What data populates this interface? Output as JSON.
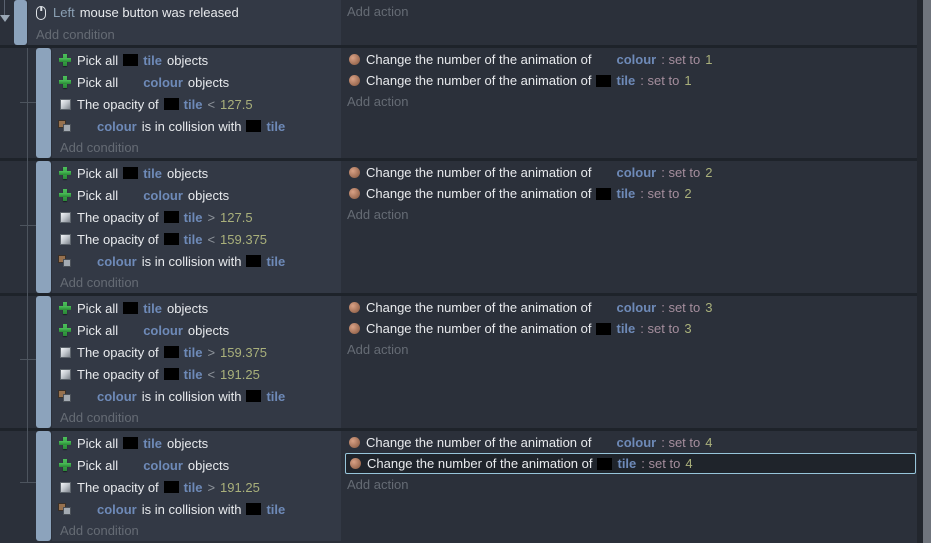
{
  "ui": {
    "add_condition": "Add condition",
    "add_action": "Add action"
  },
  "colors": {
    "object_name": "#6e8ab8",
    "number": "#a9b07b",
    "operator": "#8f959c",
    "set_to_text": "#a58e9d",
    "parameter": "#8ba0b4",
    "selection_border": "#97c5da",
    "event_bar": "#8ca3bc",
    "condition_panel_bg": "#333945",
    "background": "#2b303a"
  },
  "top_event": {
    "icon": "mouse-icon",
    "param": "Left",
    "text": "mouse button was released"
  },
  "blocks": [
    {
      "conditions": [
        {
          "icon": "pick-plus-icon",
          "segments": [
            {
              "t": "text",
              "v": "Pick all"
            },
            {
              "t": "thumb",
              "v": "black"
            },
            {
              "t": "object",
              "v": "tile"
            },
            {
              "t": "text",
              "v": "objects"
            }
          ]
        },
        {
          "icon": "pick-plus-icon",
          "segments": [
            {
              "t": "text",
              "v": "Pick all"
            },
            {
              "t": "thumb",
              "v": "blank"
            },
            {
              "t": "object",
              "v": "colour"
            },
            {
              "t": "text",
              "v": "objects"
            }
          ]
        },
        {
          "icon": "opacity-icon",
          "segments": [
            {
              "t": "text",
              "v": "The opacity of"
            },
            {
              "t": "thumb",
              "v": "black"
            },
            {
              "t": "object",
              "v": "tile"
            },
            {
              "t": "op",
              "v": "<"
            },
            {
              "t": "num",
              "v": "127.5"
            }
          ]
        },
        {
          "icon": "collision-icon",
          "segments": [
            {
              "t": "thumb",
              "v": "blank"
            },
            {
              "t": "object",
              "v": "colour"
            },
            {
              "t": "text",
              "v": "is in collision with"
            },
            {
              "t": "thumb",
              "v": "black"
            },
            {
              "t": "object",
              "v": "tile"
            }
          ]
        }
      ],
      "actions": [
        {
          "icon": "animation-icon",
          "text": "Change the number of the animation of",
          "thumb": "blank",
          "object": "colour",
          "set_label": ": set to",
          "value": "1",
          "selected": false
        },
        {
          "icon": "animation-icon",
          "text": "Change the number of the animation of",
          "thumb": "black",
          "object": "tile",
          "set_label": ": set to",
          "value": "1",
          "selected": false
        }
      ]
    },
    {
      "conditions": [
        {
          "icon": "pick-plus-icon",
          "segments": [
            {
              "t": "text",
              "v": "Pick all"
            },
            {
              "t": "thumb",
              "v": "black"
            },
            {
              "t": "object",
              "v": "tile"
            },
            {
              "t": "text",
              "v": "objects"
            }
          ]
        },
        {
          "icon": "pick-plus-icon",
          "segments": [
            {
              "t": "text",
              "v": "Pick all"
            },
            {
              "t": "thumb",
              "v": "blank"
            },
            {
              "t": "object",
              "v": "colour"
            },
            {
              "t": "text",
              "v": "objects"
            }
          ]
        },
        {
          "icon": "opacity-icon",
          "segments": [
            {
              "t": "text",
              "v": "The opacity of"
            },
            {
              "t": "thumb",
              "v": "black"
            },
            {
              "t": "object",
              "v": "tile"
            },
            {
              "t": "op",
              "v": ">"
            },
            {
              "t": "num",
              "v": "127.5"
            }
          ]
        },
        {
          "icon": "opacity-icon",
          "segments": [
            {
              "t": "text",
              "v": "The opacity of"
            },
            {
              "t": "thumb",
              "v": "black"
            },
            {
              "t": "object",
              "v": "tile"
            },
            {
              "t": "op",
              "v": "<"
            },
            {
              "t": "num",
              "v": "159.375"
            }
          ]
        },
        {
          "icon": "collision-icon",
          "segments": [
            {
              "t": "thumb",
              "v": "blank"
            },
            {
              "t": "object",
              "v": "colour"
            },
            {
              "t": "text",
              "v": "is in collision with"
            },
            {
              "t": "thumb",
              "v": "black"
            },
            {
              "t": "object",
              "v": "tile"
            }
          ]
        }
      ],
      "actions": [
        {
          "icon": "animation-icon",
          "text": "Change the number of the animation of",
          "thumb": "blank",
          "object": "colour",
          "set_label": ": set to",
          "value": "2",
          "selected": false
        },
        {
          "icon": "animation-icon",
          "text": "Change the number of the animation of",
          "thumb": "black",
          "object": "tile",
          "set_label": ": set to",
          "value": "2",
          "selected": false
        }
      ]
    },
    {
      "conditions": [
        {
          "icon": "pick-plus-icon",
          "segments": [
            {
              "t": "text",
              "v": "Pick all"
            },
            {
              "t": "thumb",
              "v": "black"
            },
            {
              "t": "object",
              "v": "tile"
            },
            {
              "t": "text",
              "v": "objects"
            }
          ]
        },
        {
          "icon": "pick-plus-icon",
          "segments": [
            {
              "t": "text",
              "v": "Pick all"
            },
            {
              "t": "thumb",
              "v": "blank"
            },
            {
              "t": "object",
              "v": "colour"
            },
            {
              "t": "text",
              "v": "objects"
            }
          ]
        },
        {
          "icon": "opacity-icon",
          "segments": [
            {
              "t": "text",
              "v": "The opacity of"
            },
            {
              "t": "thumb",
              "v": "black"
            },
            {
              "t": "object",
              "v": "tile"
            },
            {
              "t": "op",
              "v": ">"
            },
            {
              "t": "num",
              "v": "159.375"
            }
          ]
        },
        {
          "icon": "opacity-icon",
          "segments": [
            {
              "t": "text",
              "v": "The opacity of"
            },
            {
              "t": "thumb",
              "v": "black"
            },
            {
              "t": "object",
              "v": "tile"
            },
            {
              "t": "op",
              "v": "<"
            },
            {
              "t": "num",
              "v": "191.25"
            }
          ]
        },
        {
          "icon": "collision-icon",
          "segments": [
            {
              "t": "thumb",
              "v": "blank"
            },
            {
              "t": "object",
              "v": "colour"
            },
            {
              "t": "text",
              "v": "is in collision with"
            },
            {
              "t": "thumb",
              "v": "black"
            },
            {
              "t": "object",
              "v": "tile"
            }
          ]
        }
      ],
      "actions": [
        {
          "icon": "animation-icon",
          "text": "Change the number of the animation of",
          "thumb": "blank",
          "object": "colour",
          "set_label": ": set to",
          "value": "3",
          "selected": false
        },
        {
          "icon": "animation-icon",
          "text": "Change the number of the animation of",
          "thumb": "black",
          "object": "tile",
          "set_label": ": set to",
          "value": "3",
          "selected": false
        }
      ]
    },
    {
      "conditions": [
        {
          "icon": "pick-plus-icon",
          "segments": [
            {
              "t": "text",
              "v": "Pick all"
            },
            {
              "t": "thumb",
              "v": "black"
            },
            {
              "t": "object",
              "v": "tile"
            },
            {
              "t": "text",
              "v": "objects"
            }
          ]
        },
        {
          "icon": "pick-plus-icon",
          "segments": [
            {
              "t": "text",
              "v": "Pick all"
            },
            {
              "t": "thumb",
              "v": "blank"
            },
            {
              "t": "object",
              "v": "colour"
            },
            {
              "t": "text",
              "v": "objects"
            }
          ]
        },
        {
          "icon": "opacity-icon",
          "segments": [
            {
              "t": "text",
              "v": "The opacity of"
            },
            {
              "t": "thumb",
              "v": "black"
            },
            {
              "t": "object",
              "v": "tile"
            },
            {
              "t": "op",
              "v": ">"
            },
            {
              "t": "num",
              "v": "191.25"
            }
          ]
        },
        {
          "icon": "collision-icon",
          "segments": [
            {
              "t": "thumb",
              "v": "blank"
            },
            {
              "t": "object",
              "v": "colour"
            },
            {
              "t": "text",
              "v": "is in collision with"
            },
            {
              "t": "thumb",
              "v": "black"
            },
            {
              "t": "object",
              "v": "tile"
            }
          ]
        }
      ],
      "actions": [
        {
          "icon": "animation-icon",
          "text": "Change the number of the animation of",
          "thumb": "blank",
          "object": "colour",
          "set_label": ": set to",
          "value": "4",
          "selected": false
        },
        {
          "icon": "animation-icon",
          "text": "Change the number of the animation of",
          "thumb": "black",
          "object": "tile",
          "set_label": ": set to",
          "value": "4",
          "selected": true
        }
      ]
    }
  ]
}
